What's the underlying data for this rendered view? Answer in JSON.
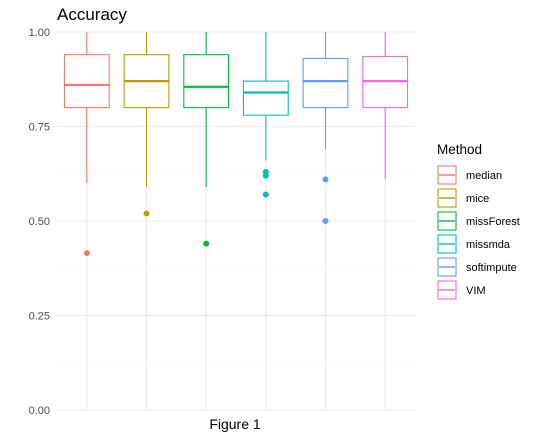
{
  "chart_data": {
    "type": "box",
    "title": "Accuracy",
    "xlabel": "",
    "ylabel": "",
    "ylim": [
      0,
      1
    ],
    "y_ticks": [
      "0.00",
      "0.25",
      "0.50",
      "0.75",
      "1.00"
    ],
    "grid": true,
    "legend_position": "right",
    "legend_title": "Method",
    "caption": "Figure 1",
    "series": [
      {
        "name": "median",
        "color": "#F8766D",
        "min": 0.6,
        "q1": 0.8,
        "median": 0.86,
        "q3": 0.94,
        "max": 1.0,
        "outliers": [
          0.415
        ]
      },
      {
        "name": "mice",
        "color": "#B79F00",
        "min": 0.59,
        "q1": 0.8,
        "median": 0.87,
        "q3": 0.94,
        "max": 1.0,
        "outliers": [
          0.52
        ]
      },
      {
        "name": "missForest",
        "color": "#00BA38",
        "min": 0.59,
        "q1": 0.8,
        "median": 0.855,
        "q3": 0.94,
        "max": 1.0,
        "outliers": [
          0.44
        ]
      },
      {
        "name": "missmda",
        "color": "#00BFC4",
        "min": 0.66,
        "q1": 0.78,
        "median": 0.84,
        "q3": 0.87,
        "max": 1.0,
        "outliers": [
          0.63,
          0.62,
          0.57
        ]
      },
      {
        "name": "softimpute",
        "color": "#619CFF",
        "min": 0.69,
        "q1": 0.8,
        "median": 0.87,
        "q3": 0.93,
        "max": 1.0,
        "outliers": [
          0.61,
          0.5
        ]
      },
      {
        "name": "VIM",
        "color": "#F564E3",
        "min": 0.61,
        "q1": 0.8,
        "median": 0.87,
        "q3": 0.935,
        "max": 1.0,
        "outliers": []
      }
    ]
  }
}
